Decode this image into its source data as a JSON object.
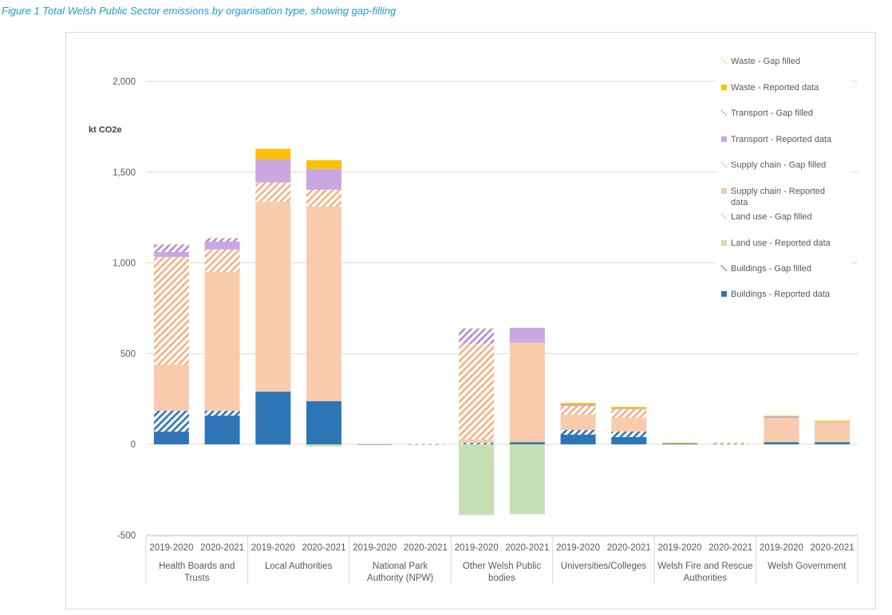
{
  "figure": {
    "title": "Figure 1  Total Welsh Public Sector emissions by organisation type, showing gap-filling"
  },
  "chart_data": {
    "type": "bar",
    "stacked": true,
    "title": "Figure 1  Total Welsh Public Sector emissions by organisation type, showing gap-filling",
    "ylabel": "kt CO2e",
    "xlabel": "",
    "ylim": [
      -500,
      2000
    ],
    "yticks": [
      -500,
      0,
      500,
      1000,
      1500,
      2000
    ],
    "ytick_labels": [
      "-500",
      "0",
      "500",
      "1,000",
      "1,500",
      "2,000"
    ],
    "grid": true,
    "legend_position": "right",
    "groups": [
      "Health Boards and Trusts",
      "Local Authorities",
      "National Park Authority (NPW)",
      "Other Welsh Public bodies",
      "Universities/Colleges",
      "Welsh Fire and Rescue Authorities",
      "Welsh Government"
    ],
    "group_label_lines": [
      [
        "Health Boards and",
        "Trusts"
      ],
      [
        "Local Authorities"
      ],
      [
        "National Park",
        "Authority (NPW)"
      ],
      [
        "Other Welsh Public",
        "bodies"
      ],
      [
        "Universities/Colleges"
      ],
      [
        "Welsh Fire and Rescue",
        "Authorities"
      ],
      [
        "Welsh Government"
      ]
    ],
    "years": [
      "2019-2020",
      "2020-2021"
    ],
    "categories": [
      "Health Boards and Trusts 2019-2020",
      "Health Boards and Trusts 2020-2021",
      "Local Authorities 2019-2020",
      "Local Authorities 2020-2021",
      "National Park Authority (NPW) 2019-2020",
      "National Park Authority (NPW) 2020-2021",
      "Other Welsh Public bodies 2019-2020",
      "Other Welsh Public bodies 2020-2021",
      "Universities/Colleges 2019-2020",
      "Universities/Colleges 2020-2021",
      "Welsh Fire and Rescue Authorities 2019-2020",
      "Welsh Fire and Rescue Authorities 2020-2021",
      "Welsh Government 2019-2020",
      "Welsh Government 2020-2021"
    ],
    "series": [
      {
        "name": "Buildings - Reported data",
        "color": "#2e75b6",
        "pattern": "solid",
        "values": [
          70,
          158,
          290,
          238,
          1,
          0,
          0,
          12,
          53,
          40,
          4,
          0,
          12,
          12
        ]
      },
      {
        "name": "Buildings - Gap filled",
        "color": "#2e75b6",
        "pattern": "hatch",
        "values": [
          115,
          27,
          0,
          0,
          0,
          1,
          8,
          0,
          26,
          30,
          0,
          3,
          0,
          0
        ]
      },
      {
        "name": "Land use - Reported data",
        "color": "#c5e0b4",
        "pattern": "solid",
        "values": [
          0,
          0,
          -5,
          -12,
          0,
          0,
          -390,
          -385,
          0,
          0,
          0,
          0,
          0,
          0
        ]
      },
      {
        "name": "Land use - Gap filled",
        "color": "#a9d18e",
        "pattern": "hatch",
        "values": [
          0,
          0,
          0,
          0,
          0,
          0,
          0,
          0,
          0,
          0,
          0,
          0,
          0,
          0
        ]
      },
      {
        "name": "Supply chain - Reported data",
        "color": "#f8cbad",
        "pattern": "solid",
        "values": [
          255,
          765,
          1047,
          1073,
          2,
          0,
          18,
          548,
          84,
          75,
          4,
          0,
          133,
          113
        ]
      },
      {
        "name": "Supply chain - Gap filled",
        "color": "#f4b183",
        "pattern": "hatch",
        "values": [
          593,
          124,
          106,
          92,
          0,
          2,
          529,
          0,
          48,
          49,
          0,
          3,
          0,
          0
        ]
      },
      {
        "name": "Transport - Reported data",
        "color": "#c9a7e1",
        "pattern": "solid",
        "values": [
          27,
          43,
          128,
          115,
          0,
          0,
          0,
          82,
          9,
          4,
          0,
          0,
          10,
          3
        ]
      },
      {
        "name": "Transport - Gap filled",
        "color": "#b68ad6",
        "pattern": "hatch",
        "values": [
          40,
          18,
          0,
          0,
          0,
          0,
          83,
          0,
          0,
          0,
          0,
          0,
          0,
          0
        ]
      },
      {
        "name": "Waste - Reported data",
        "color": "#ffc000",
        "pattern": "solid",
        "values": [
          0,
          0,
          57,
          48,
          0,
          0,
          0,
          0,
          8,
          8,
          1,
          0,
          2,
          2
        ]
      },
      {
        "name": "Waste - Gap filled",
        "color": "#ffd966",
        "pattern": "hatch",
        "values": [
          5,
          4,
          0,
          0,
          0,
          0,
          2,
          0,
          0,
          0,
          0,
          5,
          0,
          0
        ]
      }
    ],
    "legend_order": [
      "Waste - Gap filled",
      "Waste - Reported data",
      "Transport - Gap filled",
      "Transport - Reported data",
      "Supply chain - Gap filled",
      "Supply chain - Reported data",
      "Land use - Gap filled",
      "Land use - Reported data",
      "Buildings - Gap filled",
      "Buildings - Reported data"
    ]
  }
}
